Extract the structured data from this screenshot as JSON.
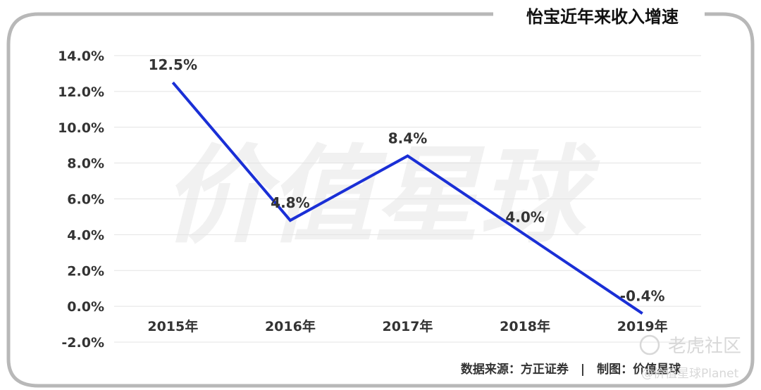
{
  "title": "怡宝近年来收入增速",
  "watermark": "价值星球",
  "source": "数据来源：方正证券　|　制图：价值星球",
  "corner": {
    "brand": "老虎社区",
    "sub": "@价值星球Planet"
  },
  "colors": {
    "line": "#1a2fd6",
    "frame": "#b8b8b8",
    "grid": "#e3e3e3"
  },
  "chart_data": {
    "type": "line",
    "categories": [
      "2015年",
      "2016年",
      "2017年",
      "2018年",
      "2019年"
    ],
    "series": [
      {
        "values": [
          12.5,
          4.8,
          8.4,
          4.0,
          -0.4
        ],
        "labels": [
          "12.5%",
          "4.8%",
          "8.4%",
          "4.0%",
          "-0.4%"
        ]
      }
    ],
    "yticks": [
      "14.0%",
      "12.0%",
      "10.0%",
      "8.0%",
      "6.0%",
      "4.0%",
      "2.0%",
      "0.0%",
      "-2.0%"
    ],
    "ylim": [
      -2,
      14
    ],
    "grid": true,
    "legend": "none"
  }
}
